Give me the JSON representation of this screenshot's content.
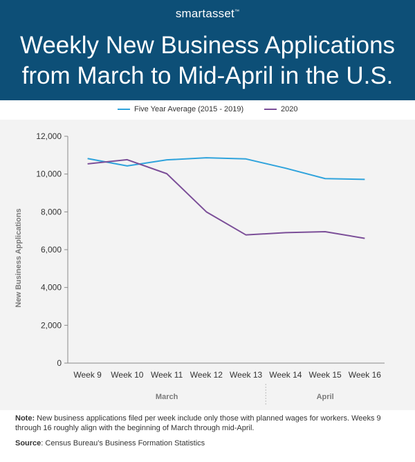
{
  "header": {
    "brand_prefix": "smart",
    "brand_suffix": "asset",
    "brand_tm": "™",
    "title_line1": "Weekly New Business Applications",
    "title_line2": "from March to Mid-April in the U.S."
  },
  "colors": {
    "header_bg": "#0d4f77",
    "series_avg": "#2fa3dc",
    "series_2020": "#7b4e98"
  },
  "notes": {
    "note_label": "Note:",
    "note_text": " New business applications filed per week include only those with planned wages for workers. Weeks 9 through 16 roughly align with the beginning of March through mid-April.",
    "source_label": "Source",
    "source_text": ": Census Bureau's Business Formation Statistics"
  },
  "chart_data": {
    "type": "line",
    "categories": [
      "Week 9",
      "Week 10",
      "Week 11",
      "Week 12",
      "Week 13",
      "Week 14",
      "Week 15",
      "Week 16"
    ],
    "series": [
      {
        "name": "Five Year Average (2015 - 2019)",
        "values": [
          10820,
          10430,
          10750,
          10860,
          10800,
          10310,
          9760,
          9720
        ]
      },
      {
        "name": "2020",
        "values": [
          10540,
          10760,
          10020,
          8000,
          6780,
          6900,
          6950,
          6600
        ]
      }
    ],
    "ylabel": "New Business Applications",
    "ylim": [
      0,
      12000
    ],
    "yticks": [
      0,
      2000,
      4000,
      6000,
      8000,
      10000,
      12000
    ],
    "ytick_labels": [
      "0",
      "2,000",
      "4,000",
      "6,000",
      "8,000",
      "10,000",
      "12,000"
    ],
    "groups": [
      {
        "label": "March",
        "from": 0,
        "to": 4
      },
      {
        "label": "April",
        "from": 5,
        "to": 7
      }
    ],
    "grid": false,
    "legend": "top"
  }
}
